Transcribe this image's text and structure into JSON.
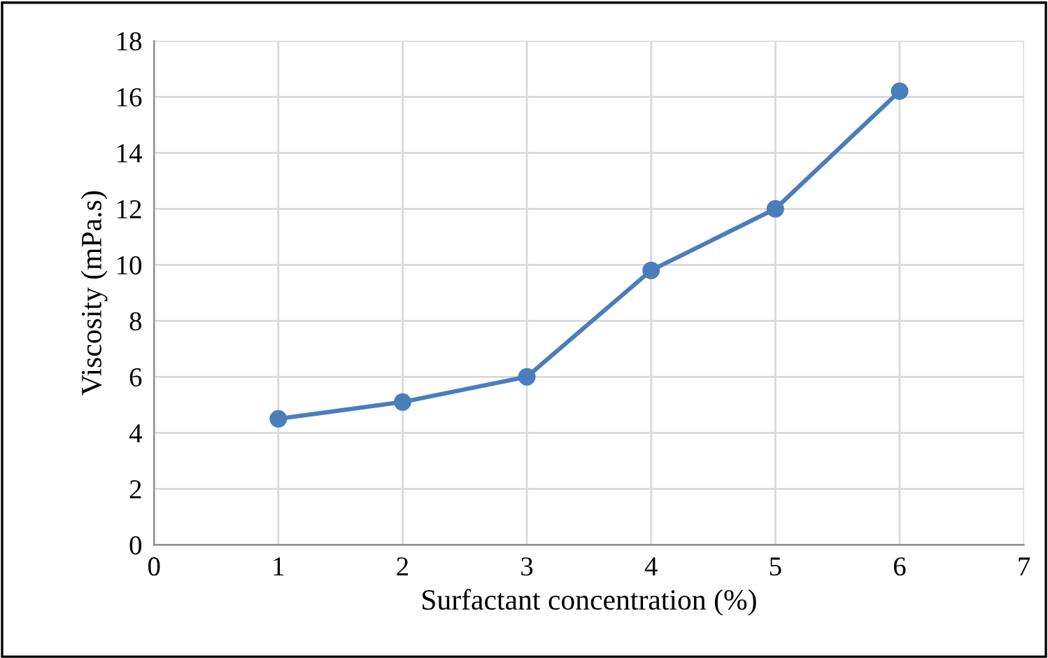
{
  "chart_data": {
    "type": "line",
    "xlabel": "Surfactant concentration (%)",
    "ylabel": "Viscosity (mPa.s)",
    "x": [
      1,
      2,
      3,
      4,
      5,
      6
    ],
    "series": [
      {
        "color": "#4a7ebb",
        "values": [
          4.5,
          5.1,
          6.0,
          9.8,
          12.0,
          16.2
        ]
      }
    ],
    "xlim": [
      0,
      7
    ],
    "xticks": [
      0,
      1,
      2,
      3,
      4,
      5,
      6,
      7
    ],
    "ylim": [
      0,
      18
    ],
    "yticks": [
      0,
      2,
      4,
      6,
      8,
      10,
      12,
      14,
      16,
      18
    ],
    "grid": true,
    "marker": "circle",
    "line_style": "solid"
  }
}
